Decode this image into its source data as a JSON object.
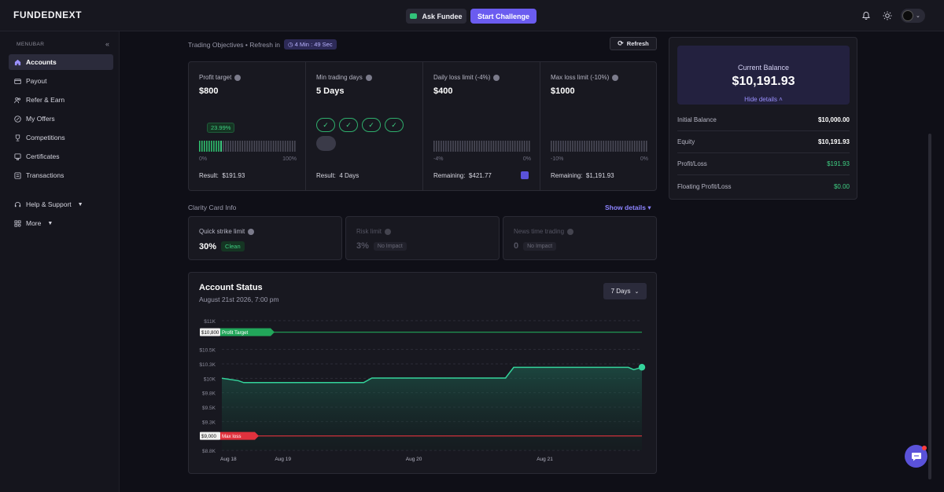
{
  "app": {
    "logo": "FUNDEDNEXT"
  },
  "topbar": {
    "ask_label": "Ask Fundee",
    "start_label": "Start Challenge"
  },
  "sidebar": {
    "title": "MENUBAR",
    "items": [
      {
        "label": "Accounts",
        "icon": "home-icon",
        "active": true
      },
      {
        "label": "Payout",
        "icon": "wallet-icon"
      },
      {
        "label": "Refer & Earn",
        "icon": "users-icon"
      },
      {
        "label": "My Offers",
        "icon": "percent-icon"
      },
      {
        "label": "Competitions",
        "icon": "trophy-icon"
      },
      {
        "label": "Certificates",
        "icon": "certificate-icon"
      },
      {
        "label": "Transactions",
        "icon": "list-icon"
      },
      {
        "label": "Help & Support",
        "icon": "headset-icon"
      },
      {
        "label": "More",
        "icon": "grid-icon"
      }
    ]
  },
  "objectives": {
    "header": "Trading Objectives • Refresh in",
    "timer": "4 Min : 49 Sec",
    "refresh_label": "Refresh",
    "columns": [
      {
        "label": "Profit target",
        "value": "$800",
        "progress_badge": "23.99%",
        "left": "0%",
        "right": "100%",
        "result_label": "Result:",
        "result_value": "$191.93",
        "fill": 0.24
      },
      {
        "label": "Min trading days",
        "value": "5 Days",
        "result_label": "Result:",
        "result_value": "4 Days",
        "days_completed": 4,
        "days_total": 5
      },
      {
        "label": "Daily loss limit (-4%)",
        "value": "$400",
        "left": "-4%",
        "right": "0%",
        "result_label": "Remaining:",
        "result_value": "$421.77",
        "fill": 0
      },
      {
        "label": "Max loss limit (-10%)",
        "value": "$1000",
        "left": "-10%",
        "right": "0%",
        "result_label": "Remaining:",
        "result_value": "$1,191.93",
        "fill": 0
      }
    ]
  },
  "clarity": {
    "title": "Clarity Card Info",
    "show_details": "Show details",
    "cards": [
      {
        "label": "Quick strike limit",
        "value": "30%",
        "badge": "Clean"
      },
      {
        "label": "Risk limit",
        "value": "3%",
        "badge": "No Impact"
      },
      {
        "label": "News time trading",
        "value": "0",
        "badge": "No Impact"
      }
    ]
  },
  "account_status": {
    "title": "Account Status",
    "date": "August 21st 2026, 7:00 pm",
    "range_select": "7 Days"
  },
  "chart_data": {
    "type": "area",
    "title": "Account Status",
    "ylim": [
      8800,
      11000
    ],
    "yticks": [
      "$11K",
      "$10.5K",
      "$10.3K",
      "$10K",
      "$9.8K",
      "$9.5K",
      "$9.3K",
      "$8.8K"
    ],
    "ytick_values": [
      11000,
      10500,
      10250,
      10000,
      9750,
      9500,
      9250,
      8750
    ],
    "xticks": [
      "Aug 18",
      "Aug 19",
      "Aug 20",
      "Aug 21"
    ],
    "xtick_values": [
      0,
      1,
      3.4,
      5.8
    ],
    "x": [
      0,
      0.3,
      0.4,
      1.5,
      2.6,
      2.75,
      3.0,
      5.2,
      5.35,
      7.45,
      7.55,
      7.7
    ],
    "series": [
      {
        "values": [
          10000,
          9960,
          9925,
          9925,
          9925,
          10005,
          10005,
          10005,
          10190,
          10190,
          10150,
          10192
        ]
      }
    ],
    "reference_lines": [
      {
        "label": "Profit Target",
        "value": 10800,
        "tag": "$10,800",
        "color": "#22a65a"
      },
      {
        "label": "Max loss",
        "value": 9000,
        "tag": "$9,000",
        "color": "#e0323d"
      }
    ]
  },
  "balance": {
    "title": "Current Balance",
    "amount": "$10,191.93",
    "hide_details": "Hide details",
    "rows": [
      {
        "label": "Initial Balance",
        "value": "$10,000.00",
        "green": false
      },
      {
        "label": "Equity",
        "value": "$10,191.93",
        "green": false
      },
      {
        "label": "Profit/Loss",
        "value": "$191.93",
        "green": true
      },
      {
        "label": "Floating Profit/Loss",
        "value": "$0.00",
        "green": true
      }
    ]
  },
  "colors": {
    "accent": "#6b5cf0",
    "green": "#3fd083",
    "red": "#e0323d"
  }
}
